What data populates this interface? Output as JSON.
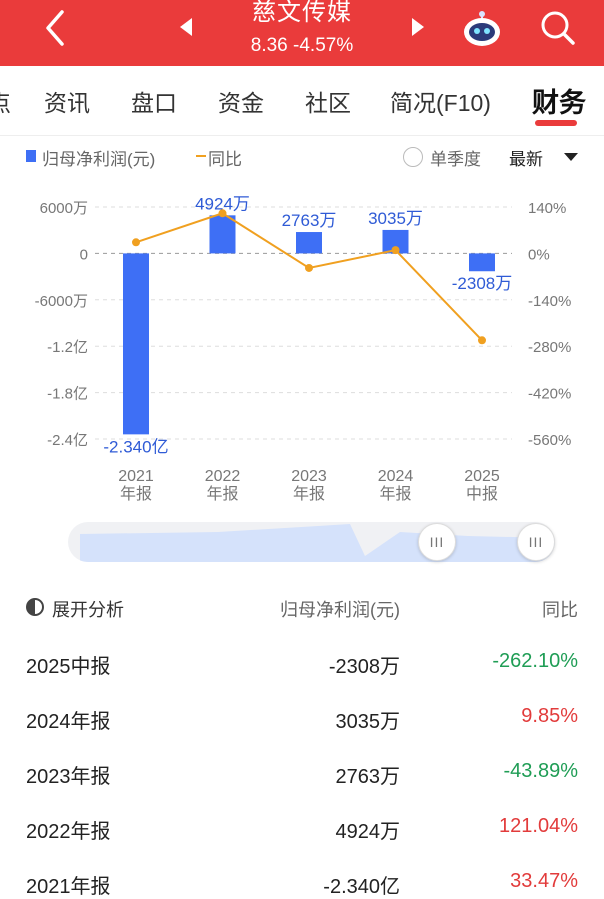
{
  "header": {
    "stock_name": "慈文传媒",
    "price": "8.36",
    "change_pct": "-4.57%"
  },
  "tabs": [
    {
      "label": "点"
    },
    {
      "label": "资讯"
    },
    {
      "label": "盘口"
    },
    {
      "label": "资金"
    },
    {
      "label": "社区"
    },
    {
      "label": "简况(F10)"
    },
    {
      "label": "财务",
      "active": true
    }
  ],
  "legend": {
    "bar_label": "归母净利润(元)",
    "line_label": "同比",
    "single_quarter": "单季度",
    "sort": "最新"
  },
  "colors": {
    "header_bg": "#ea3b3b",
    "bar": "#3e6ff5",
    "line": "#f0a020",
    "positive": "#e23b3b",
    "negative": "#1f9d55"
  },
  "chart_data": {
    "type": "bar",
    "categories": [
      "2021\n年报",
      "2022\n年报",
      "2023\n年报",
      "2024\n年报",
      "2025\n中报"
    ],
    "series": [
      {
        "name": "归母净利润(元)",
        "type": "bar",
        "values": [
          -234000000,
          49240000,
          27630000,
          30350000,
          -23080000
        ],
        "labels": [
          "-2.340亿",
          "4924万",
          "2763万",
          "3035万",
          "-2308万"
        ]
      },
      {
        "name": "同比",
        "type": "line",
        "axis": "right",
        "values": [
          33.47,
          121.04,
          -43.89,
          9.85,
          -262.1
        ]
      }
    ],
    "y_left_ticks": [
      "6000万",
      "0",
      "-6000万",
      "-1.2亿",
      "-1.8亿",
      "-2.4亿"
    ],
    "y_left_tick_values": [
      60000000,
      0,
      -60000000,
      -120000000,
      -180000000,
      -240000000
    ],
    "y_right_ticks": [
      "140%",
      "0%",
      "-140%",
      "-280%",
      "-420%",
      "-560%"
    ],
    "y_right_tick_values": [
      140,
      0,
      -140,
      -280,
      -420,
      -560
    ],
    "ylim_left": [
      -240000000,
      60000000
    ],
    "ylim_right": [
      -560,
      140
    ],
    "grid": true
  },
  "navigator": {
    "handle_glyph": "III"
  },
  "table": {
    "header": {
      "analysis": "展开分析",
      "profit": "归母净利润(元)",
      "yoy": "同比"
    },
    "rows": [
      {
        "period": "2025中报",
        "profit": "-2308万",
        "yoy": "-262.10%",
        "dir": "neg"
      },
      {
        "period": "2024年报",
        "profit": "3035万",
        "yoy": "9.85%",
        "dir": "pos"
      },
      {
        "period": "2023年报",
        "profit": "2763万",
        "yoy": "-43.89%",
        "dir": "neg"
      },
      {
        "period": "2022年报",
        "profit": "4924万",
        "yoy": "121.04%",
        "dir": "pos"
      },
      {
        "period": "2021年报",
        "profit": "-2.340亿",
        "yoy": "33.47%",
        "dir": "pos"
      }
    ]
  }
}
